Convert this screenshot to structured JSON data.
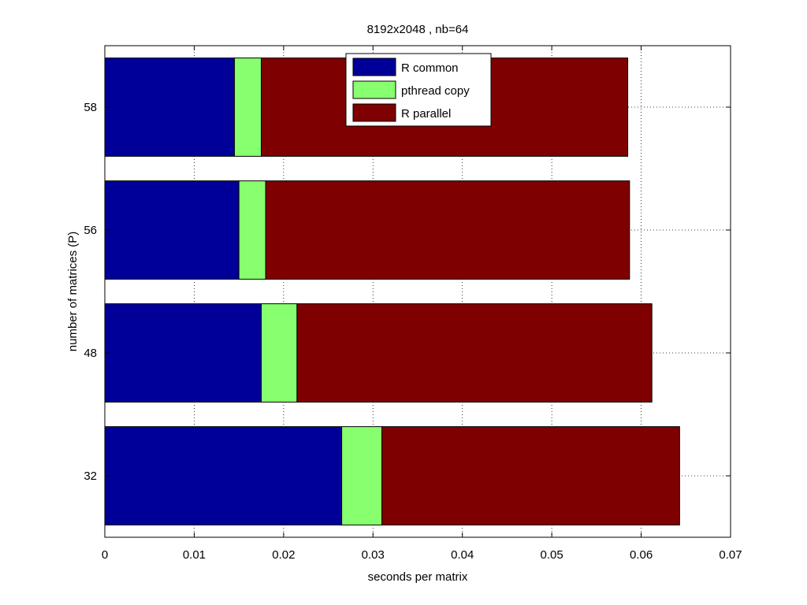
{
  "chart_data": {
    "type": "bar",
    "orientation": "horizontal",
    "stacked": true,
    "title": "8192x2048 , nb=64",
    "xlabel": "seconds per matrix",
    "ylabel": "number of matrices (P)",
    "categories": [
      "58",
      "56",
      "48",
      "32"
    ],
    "series": [
      {
        "name": "R common",
        "color": "#000099",
        "values": [
          0.0145,
          0.015,
          0.0175,
          0.0265
        ]
      },
      {
        "name": "pthread copy",
        "color": "#88ff6e",
        "values": [
          0.003,
          0.003,
          0.004,
          0.0045
        ]
      },
      {
        "name": "R parallel",
        "color": "#7f0000",
        "values": [
          0.041,
          0.0407,
          0.0397,
          0.0333
        ]
      }
    ],
    "xlim": [
      0,
      0.07
    ],
    "xticks": [
      "0",
      "0.01",
      "0.02",
      "0.03",
      "0.04",
      "0.05",
      "0.06",
      "0.07"
    ],
    "grid": true,
    "legend_position": "top"
  }
}
